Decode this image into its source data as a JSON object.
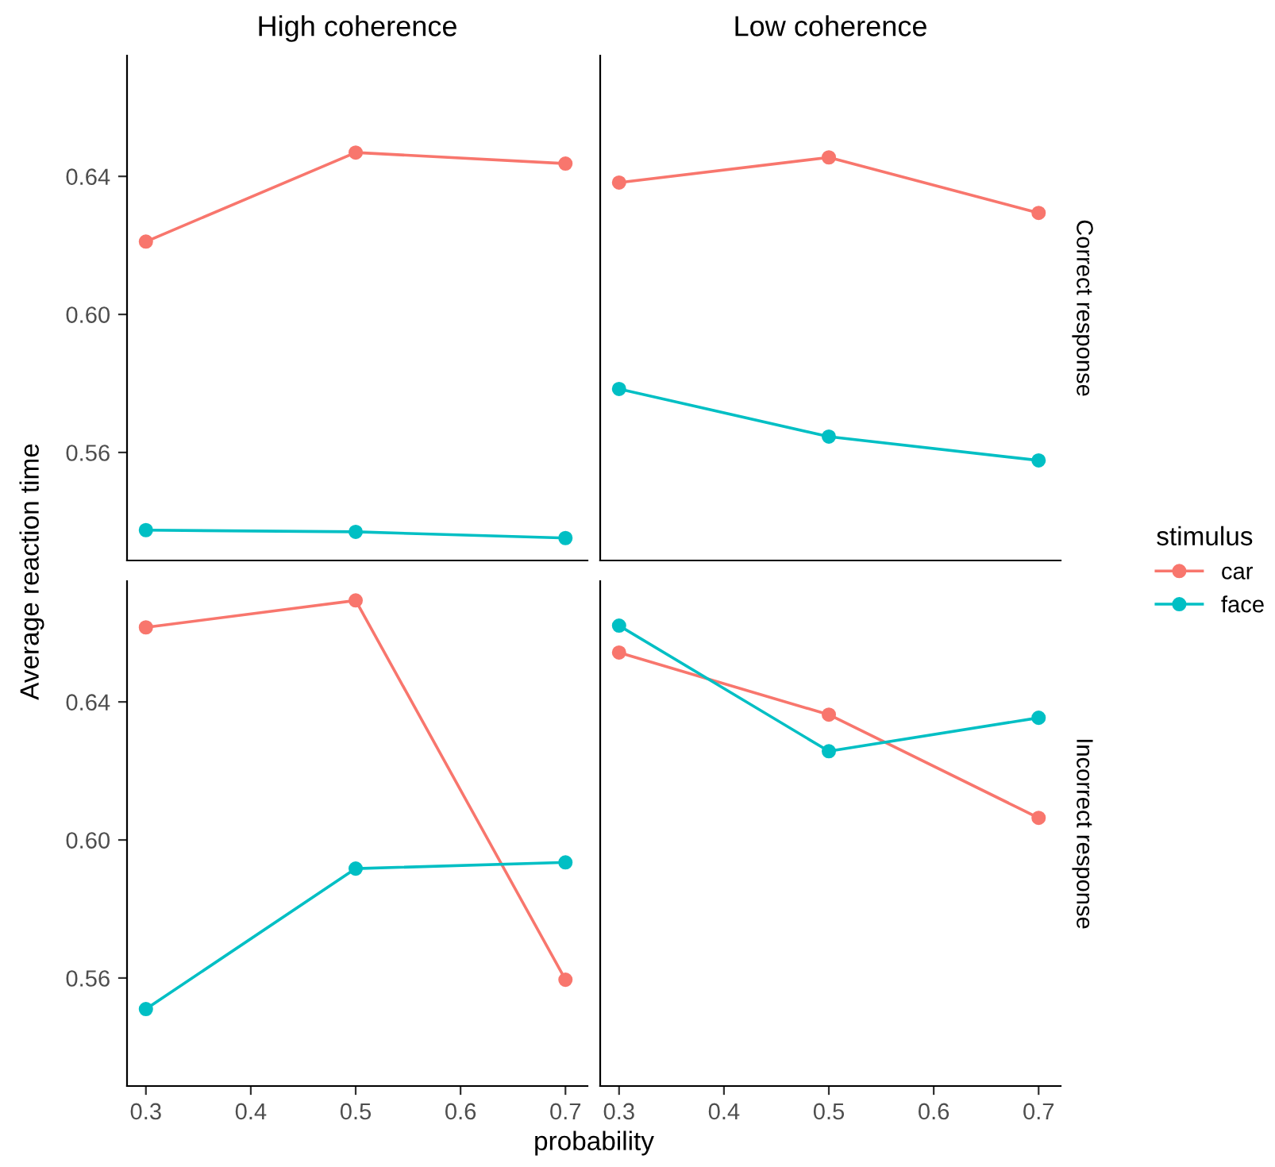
{
  "chart_data": [
    {
      "type": "line",
      "title": "High coherence",
      "ylabel": "Average reaction time",
      "legend_title": "stimulus",
      "legend": "right",
      "marker": "circle",
      "tick_labels": "y",
      "x": [
        0.3,
        0.5,
        0.7
      ],
      "xlim": [
        0.282,
        0.721
      ],
      "ylim": [
        0.5287,
        0.675
      ],
      "yticks": [
        {
          "value": 0.56,
          "label": "0.56"
        },
        {
          "value": 0.6,
          "label": "0.60"
        },
        {
          "value": 0.64,
          "label": "0.64"
        }
      ],
      "series": [
        {
          "name": "car",
          "color": "#f8766d",
          "values": [
            0.6211,
            0.6469,
            0.6437
          ]
        },
        {
          "name": "face",
          "color": "#00bfc4",
          "values": [
            0.5375,
            0.537,
            0.5352
          ]
        }
      ]
    },
    {
      "type": "line",
      "title": "Low coherence",
      "annotations": [
        "Correct response"
      ],
      "marker": "circle",
      "tick_labels": false,
      "x": [
        0.3,
        0.5,
        0.7
      ],
      "xlim": [
        0.282,
        0.721
      ],
      "ylim": [
        0.5287,
        0.675
      ],
      "series": [
        {
          "color": "#f8766d",
          "values": [
            0.6382,
            0.6455,
            0.6294
          ]
        },
        {
          "color": "#00bfc4",
          "values": [
            0.5784,
            0.5646,
            0.5577
          ]
        }
      ]
    },
    {
      "type": "line",
      "xlabel": "probability",
      "marker": "circle",
      "x": [
        0.3,
        0.5,
        0.7
      ],
      "xlim": [
        0.282,
        0.721
      ],
      "xticks": [
        0.3,
        0.4,
        0.5,
        0.6,
        0.7
      ],
      "ylim": [
        0.5287,
        0.675
      ],
      "yticks": [
        {
          "value": 0.56,
          "label": "0.56"
        },
        {
          "value": 0.6,
          "label": "0.60"
        },
        {
          "value": 0.64,
          "label": "0.64"
        }
      ],
      "series": [
        {
          "color": "#f8766d",
          "values": [
            0.6616,
            0.6694,
            0.5595
          ]
        },
        {
          "color": "#00bfc4",
          "values": [
            0.551,
            0.5917,
            0.5935
          ]
        }
      ]
    },
    {
      "type": "line",
      "annotations": [
        "Incorrect response"
      ],
      "marker": "circle",
      "tick_labels": "x",
      "x": [
        0.3,
        0.5,
        0.7
      ],
      "xlim": [
        0.282,
        0.721
      ],
      "xticks": [
        0.3,
        0.4,
        0.5,
        0.6,
        0.7
      ],
      "ylim": [
        0.5287,
        0.675
      ],
      "series": [
        {
          "color": "#f8766d",
          "values": [
            0.6543,
            0.6363,
            0.6064
          ]
        },
        {
          "color": "#00bfc4",
          "values": [
            0.6621,
            0.6257,
            0.6354
          ]
        }
      ]
    }
  ]
}
